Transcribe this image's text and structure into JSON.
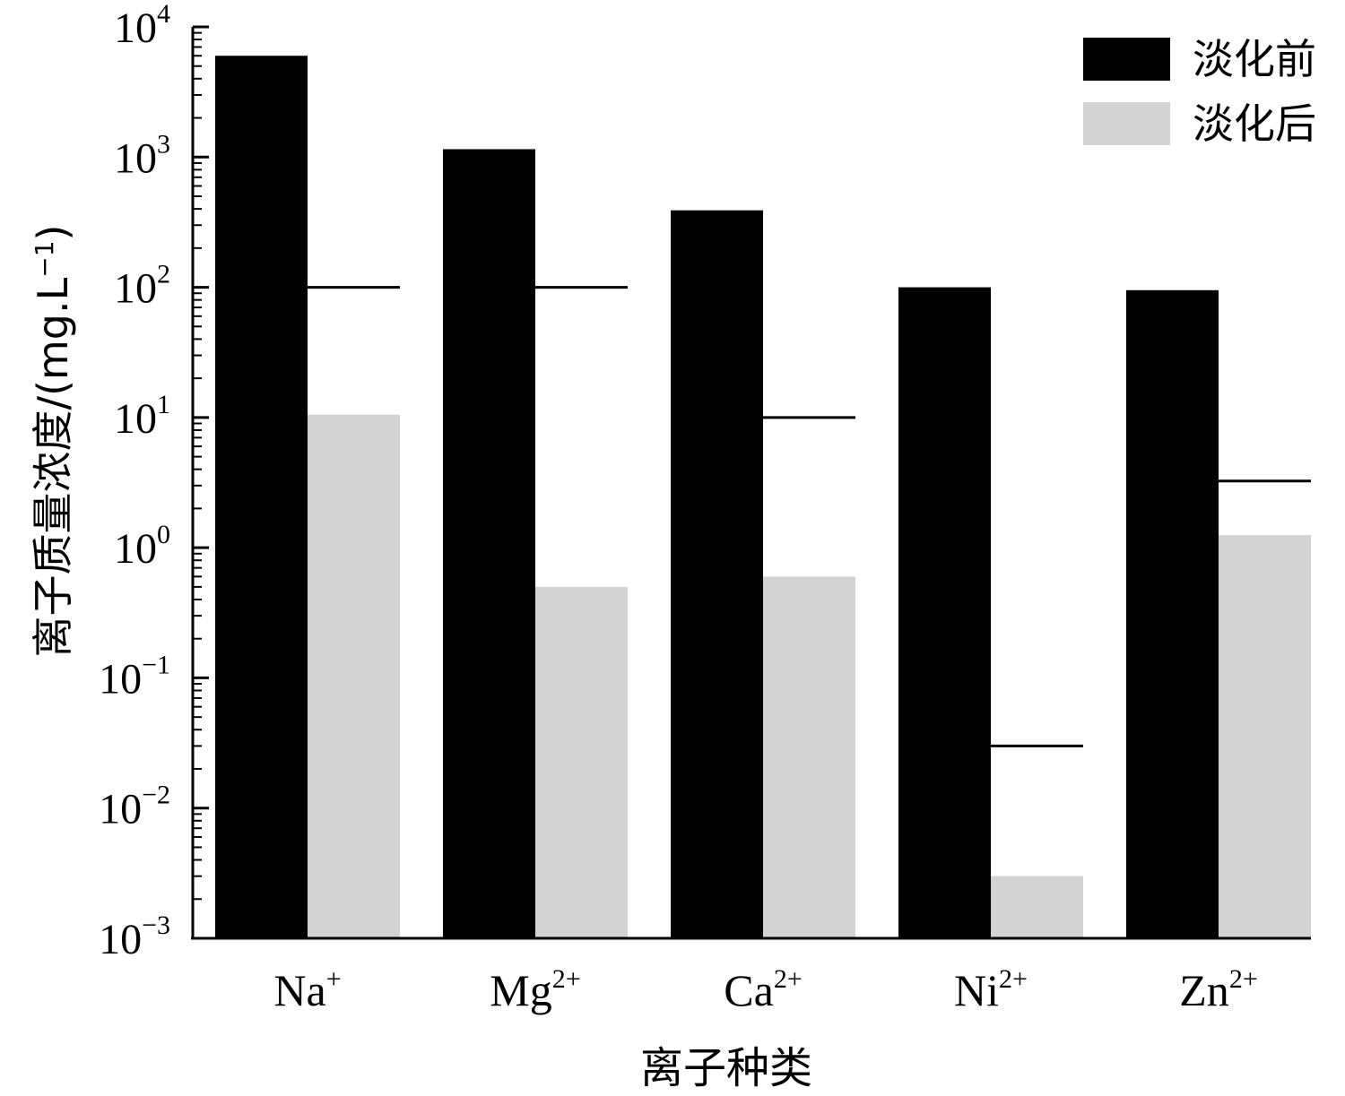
{
  "chart_data": {
    "type": "bar",
    "scale": "log",
    "categories": [
      {
        "base": "Na",
        "sup": "+"
      },
      {
        "base": "Mg",
        "sup": "2+"
      },
      {
        "base": "Ca",
        "sup": "2+"
      },
      {
        "base": "Ni",
        "sup": "2+"
      },
      {
        "base": "Zn",
        "sup": "2+"
      }
    ],
    "series": [
      {
        "name": "淡化前",
        "color": "#000000",
        "values": [
          6000,
          1150,
          390,
          100,
          95
        ]
      },
      {
        "name": "淡化后",
        "color": "#d3d3d3",
        "values": [
          10.5,
          0.5,
          0.6,
          0.003,
          1.25
        ]
      }
    ],
    "reference_lines": [
      100,
      100,
      10,
      0.03,
      3.25
    ],
    "ylim": [
      0.001,
      10000
    ],
    "yticks": [
      {
        "base": "10",
        "exp": "4"
      },
      {
        "base": "10",
        "exp": "3"
      },
      {
        "base": "10",
        "exp": "2"
      },
      {
        "base": "10",
        "exp": "1"
      },
      {
        "base": "10",
        "exp": "0"
      },
      {
        "base": "10",
        "exp": "−1"
      },
      {
        "base": "10",
        "exp": "−2"
      },
      {
        "base": "10",
        "exp": "−3"
      }
    ],
    "xlabel": "离子种类",
    "ylabel": {
      "main": "离子质量浓度/(mg.L",
      "exp": "−1",
      "close": ")"
    },
    "legend_position": "top-right",
    "grid": false
  }
}
